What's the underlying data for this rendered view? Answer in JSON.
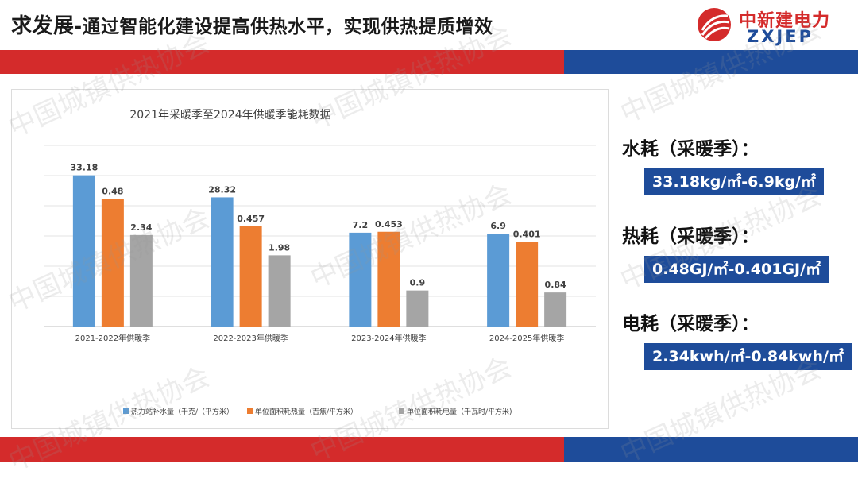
{
  "header": {
    "title_main": "求发展",
    "title_sub": "-通过智能化建设提高供热水平，实现供热提质增效",
    "logo_cn": "中新建电力",
    "logo_en": "ZXJEP"
  },
  "watermark": "中国城镇供热协会",
  "chart_data": {
    "type": "bar",
    "title": "2021年采暖季至2024年供暖季能耗数据",
    "categories": [
      "2021-2022年供暖季",
      "2022-2023年供暖季",
      "2023-2024年供暖季",
      "2024-2025年供暖季"
    ],
    "series": [
      {
        "name": "热力站补水量（千克/（平方米）",
        "color": "#5b9bd5",
        "values": [
          33.18,
          28.32,
          7.2,
          6.9
        ],
        "labels": [
          "33.18",
          "28.32",
          "7.2",
          "6.9"
        ]
      },
      {
        "name": "单位面积耗热量（吉焦/平方米）",
        "color": "#ed7d31",
        "values": [
          0.48,
          0.457,
          0.453,
          0.401
        ],
        "labels": [
          "0.48",
          "0.457",
          "0.453",
          "0.401"
        ]
      },
      {
        "name": "单位面积耗电量（千瓦时/平方米)",
        "color": "#a5a5a5",
        "values": [
          2.34,
          1.98,
          0.9,
          0.84
        ],
        "labels": [
          "2.34",
          "1.98",
          "0.9",
          "0.84"
        ]
      }
    ],
    "visual_heights": [
      [
        0.835,
        0.713,
        0.518,
        0.513
      ],
      [
        0.705,
        0.553,
        0.523,
        0.468
      ],
      [
        0.505,
        0.393,
        0.199,
        0.188
      ]
    ],
    "grid": true,
    "gridlines": 6,
    "legend_position": "bottom"
  },
  "metrics": [
    {
      "label": "水耗（采暖季）：",
      "value": "33.18kg/㎡-6.9kg/㎡"
    },
    {
      "label": "热耗（采暖季）：",
      "value": "0.48GJ/㎡-0.401GJ/㎡"
    },
    {
      "label": "电耗（采暖季）：",
      "value": "2.34kwh/㎡-0.84kwh/㎡"
    }
  ]
}
